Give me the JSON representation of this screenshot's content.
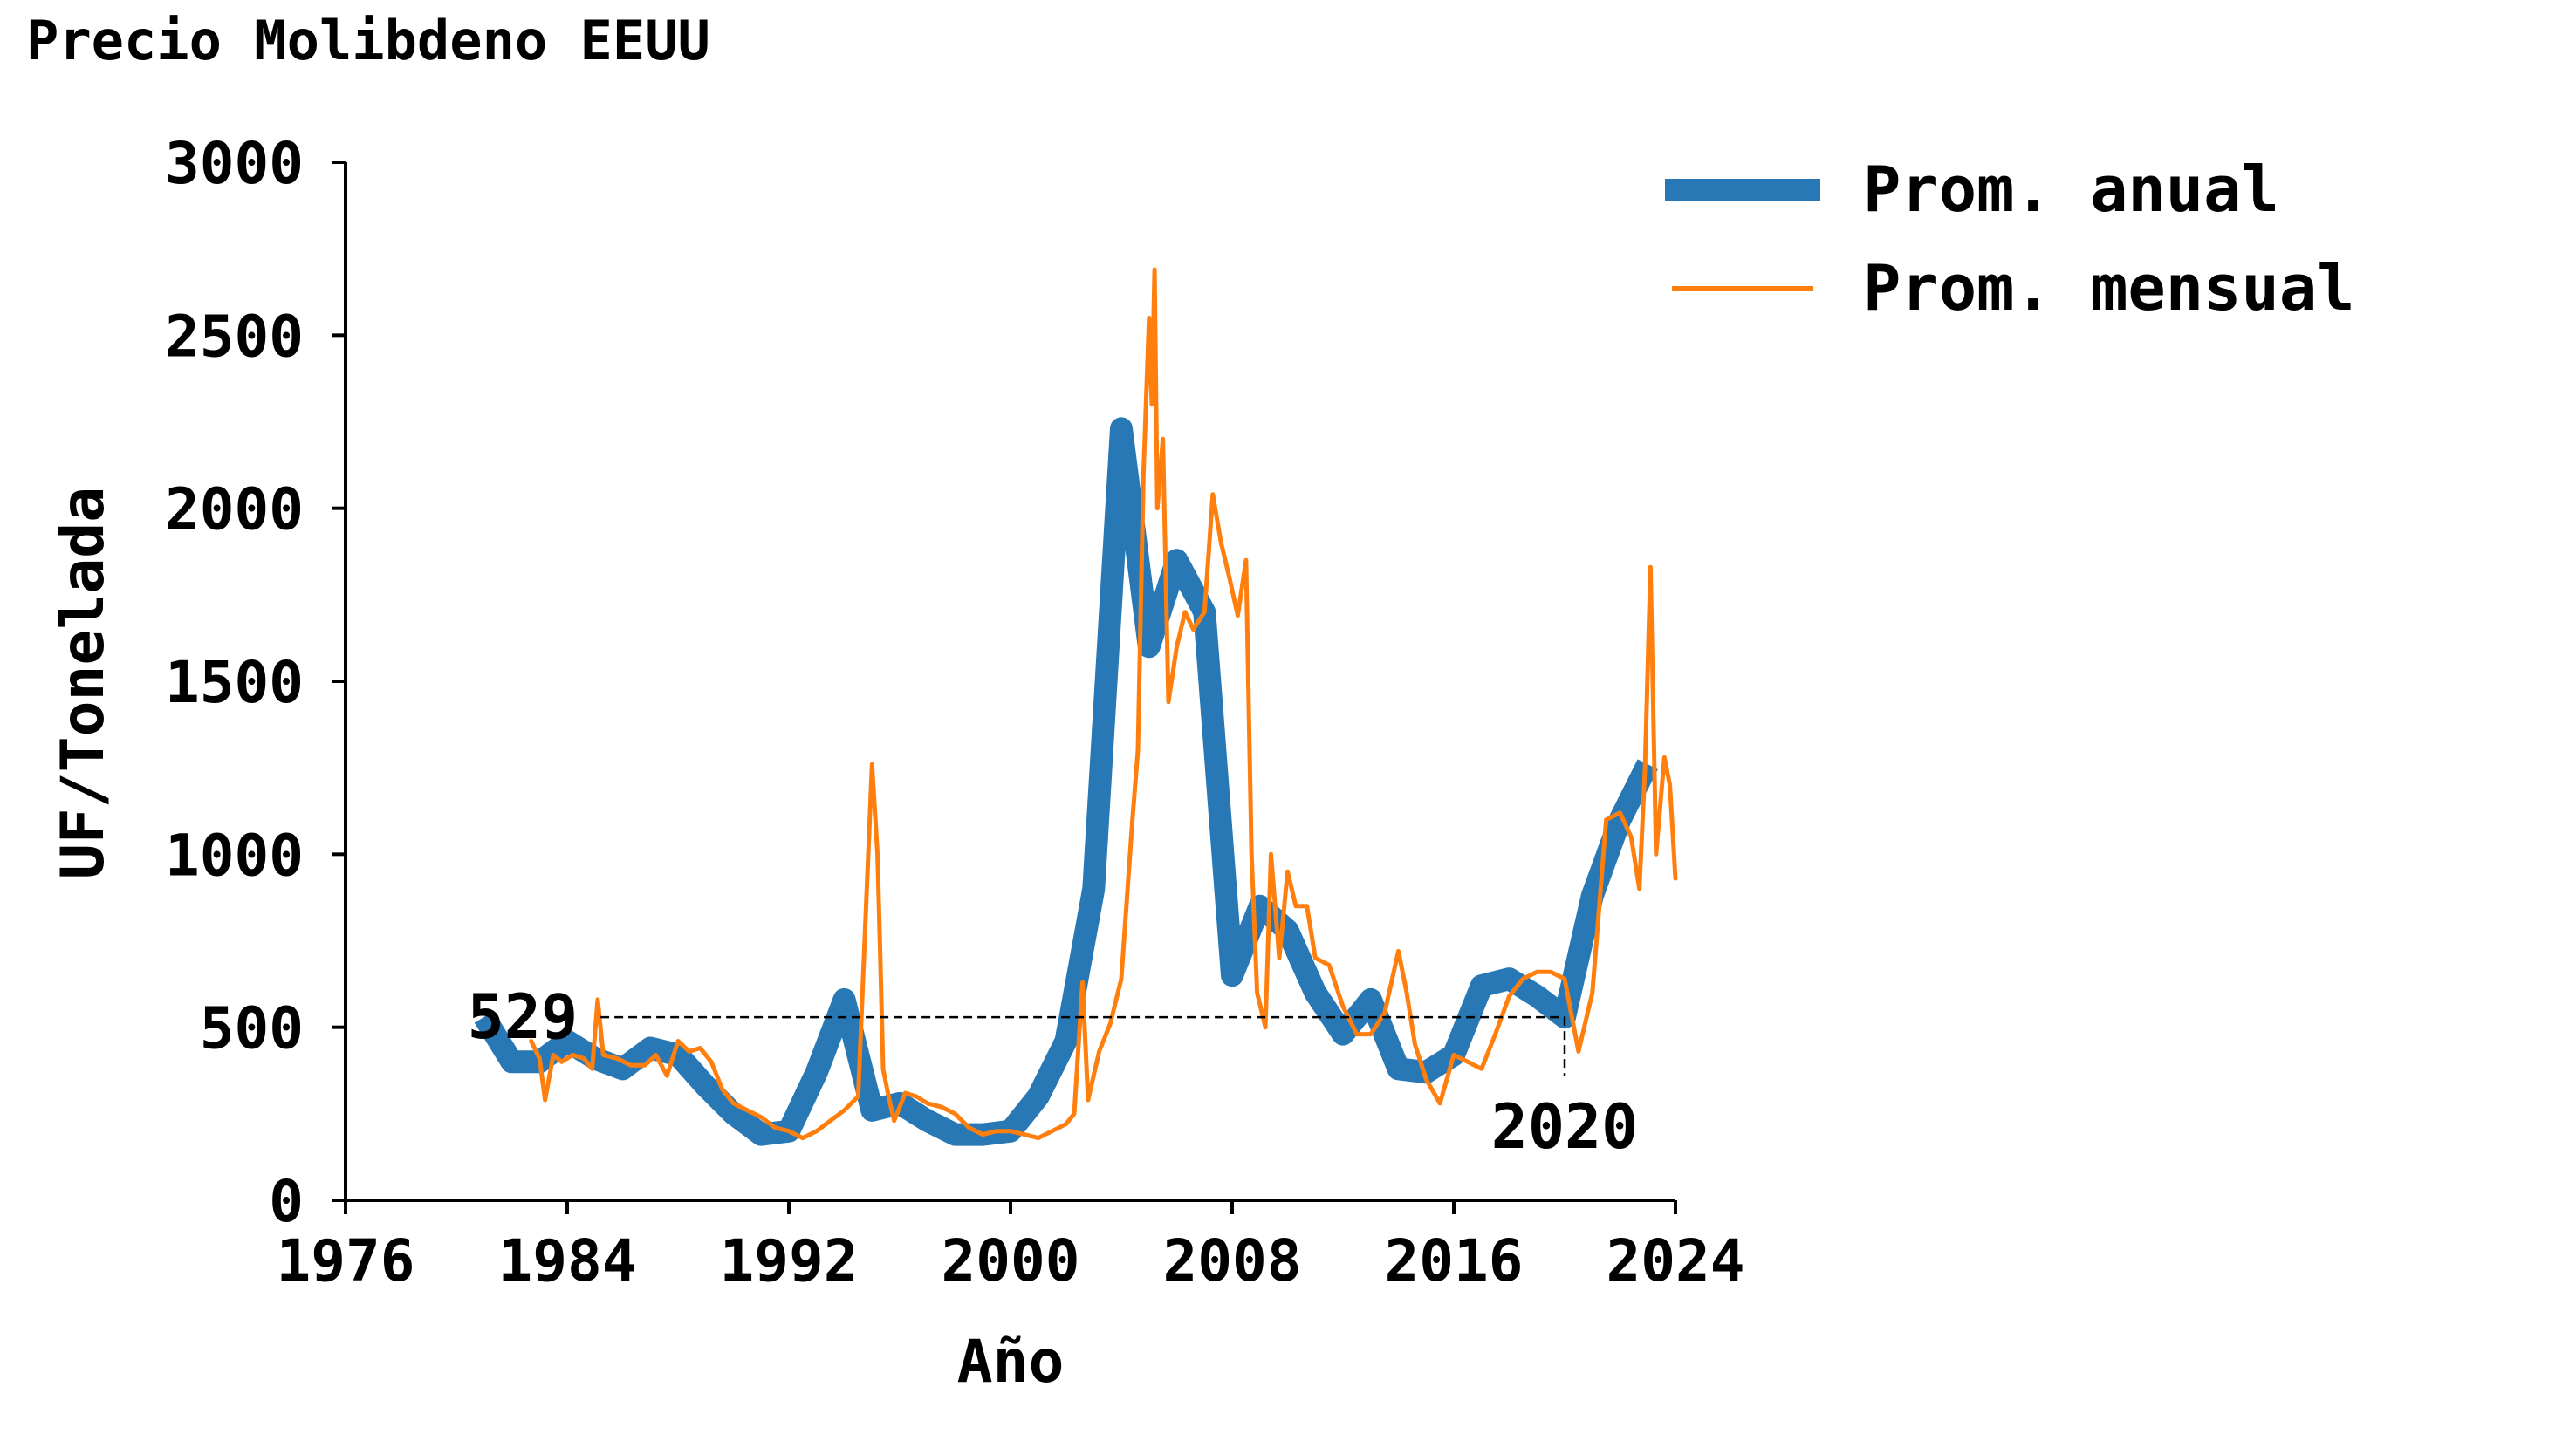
{
  "chart_data": {
    "type": "line",
    "title": "Precio Molibdeno EEUU",
    "xlabel": "Año",
    "ylabel": "UF/Tonelada",
    "xlim": [
      1976,
      2024
    ],
    "ylim": [
      0,
      3000
    ],
    "xticks": [
      1976,
      1984,
      1992,
      2000,
      2008,
      2016,
      2024
    ],
    "yticks": [
      0,
      500,
      1000,
      1500,
      2000,
      2500,
      3000
    ],
    "grid": false,
    "legend_position": "top-right, outside plot area",
    "reference": {
      "x": 2020,
      "y": 529,
      "x_label": "2020",
      "y_label": "529",
      "line_style": "dashed"
    },
    "series": [
      {
        "name": "Prom. anual",
        "color": "#2878b5",
        "style": "thick",
        "x": [
          1981,
          1982,
          1983,
          1984,
          1985,
          1986,
          1987,
          1988,
          1989,
          1990,
          1991,
          1992,
          1993,
          1994,
          1995,
          1996,
          1997,
          1998,
          1999,
          2000,
          2001,
          2002,
          2003,
          2004,
          2005,
          2006,
          2007,
          2008,
          2009,
          2010,
          2011,
          2012,
          2013,
          2014,
          2015,
          2016,
          2017,
          2018,
          2019,
          2020,
          2021,
          2022,
          2023
        ],
        "y": [
          530,
          400,
          400,
          460,
          410,
          380,
          440,
          420,
          330,
          250,
          190,
          200,
          370,
          580,
          260,
          280,
          230,
          190,
          190,
          200,
          300,
          460,
          900,
          2230,
          1600,
          1850,
          1700,
          650,
          850,
          780,
          600,
          480,
          580,
          380,
          370,
          420,
          620,
          640,
          590,
          529,
          880,
          1100,
          1260
        ]
      },
      {
        "name": "Prom. mensual",
        "color": "#ff7f0e",
        "style": "thin",
        "x": [
          1982.7,
          1983.0,
          1983.2,
          1983.5,
          1983.8,
          1984.2,
          1984.6,
          1984.9,
          1985.1,
          1985.3,
          1985.8,
          1986.3,
          1986.8,
          1987.2,
          1987.6,
          1988.0,
          1988.4,
          1988.8,
          1989.2,
          1989.6,
          1990.0,
          1990.5,
          1991.0,
          1991.5,
          1992.0,
          1992.5,
          1993.0,
          1993.5,
          1994.0,
          1994.5,
          1995.0,
          1995.2,
          1995.3,
          1995.4,
          1995.6,
          1995.8,
          1996.2,
          1996.6,
          1997.0,
          1997.5,
          1998.0,
          1998.5,
          1999.0,
          1999.5,
          2000.0,
          2000.5,
          2001.0,
          2001.5,
          2002.0,
          2002.3,
          2002.6,
          2002.8,
          2003.2,
          2003.6,
          2004.0,
          2004.4,
          2004.6,
          2004.8,
          2005.0,
          2005.1,
          2005.2,
          2005.3,
          2005.5,
          2005.7,
          2006.0,
          2006.3,
          2006.6,
          2007.0,
          2007.3,
          2007.6,
          2007.9,
          2008.2,
          2008.5,
          2008.7,
          2008.9,
          2009.2,
          2009.4,
          2009.7,
          2010.0,
          2010.3,
          2010.7,
          2011.0,
          2011.5,
          2012.0,
          2012.5,
          2013.0,
          2013.5,
          2014.0,
          2014.3,
          2014.6,
          2015.0,
          2015.5,
          2016.0,
          2016.5,
          2017.0,
          2017.5,
          2018.0,
          2018.5,
          2019.0,
          2019.5,
          2020.0,
          2020.5,
          2021.0,
          2021.5,
          2022.0,
          2022.4,
          2022.7,
          2022.9,
          2023.1,
          2023.3,
          2023.6,
          2023.8,
          2024.0
        ],
        "y": [
          460,
          410,
          290,
          420,
          400,
          420,
          410,
          380,
          580,
          420,
          410,
          390,
          390,
          420,
          360,
          460,
          430,
          440,
          400,
          320,
          280,
          260,
          240,
          210,
          200,
          180,
          200,
          230,
          260,
          300,
          1260,
          1000,
          700,
          380,
          300,
          230,
          310,
          300,
          280,
          270,
          250,
          210,
          190,
          200,
          200,
          190,
          180,
          200,
          220,
          250,
          630,
          290,
          430,
          510,
          640,
          1100,
          1300,
          2100,
          2550,
          2300,
          2690,
          2000,
          2200,
          1440,
          1600,
          1700,
          1650,
          1700,
          2040,
          1900,
          1800,
          1690,
          1850,
          1000,
          600,
          500,
          1000,
          700,
          950,
          850,
          850,
          700,
          680,
          560,
          480,
          480,
          540,
          720,
          600,
          450,
          350,
          280,
          420,
          400,
          380,
          480,
          590,
          640,
          660,
          660,
          640,
          430,
          600,
          1100,
          1120,
          1050,
          900,
          1250,
          1830,
          1000,
          1280,
          1200,
          930
        ]
      }
    ]
  }
}
